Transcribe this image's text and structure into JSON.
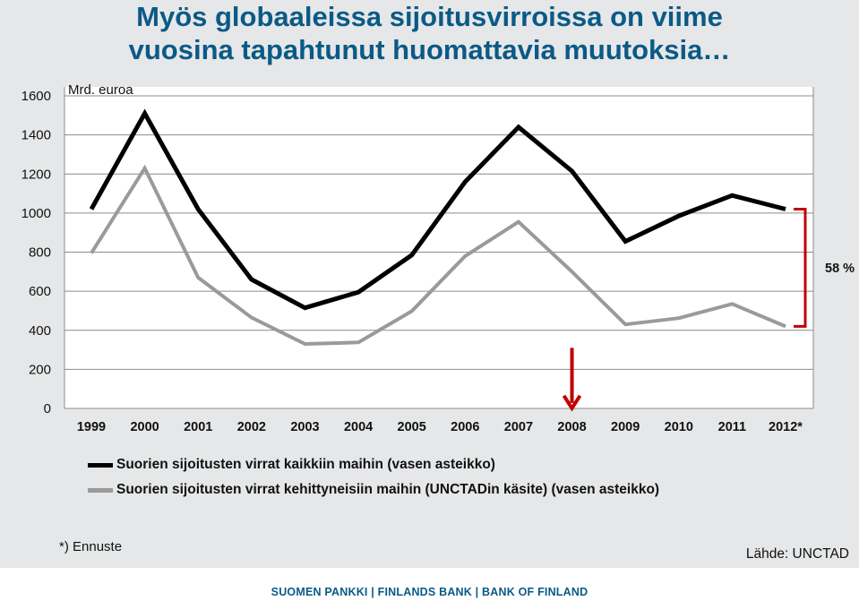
{
  "title": {
    "line1": "Myös globaaleissa sijoitusvirroissa on viime",
    "line2": "vuosina tapahtunut huomattavia muutoksia…"
  },
  "chart_data": {
    "type": "line",
    "unit_label": "Mrd. euroa",
    "categories": [
      "1999",
      "2000",
      "2001",
      "2002",
      "2003",
      "2004",
      "2005",
      "2006",
      "2007",
      "2008",
      "2009",
      "2010",
      "2011",
      "2012*"
    ],
    "ylim": [
      0,
      1600
    ],
    "yticks": [
      0,
      200,
      400,
      600,
      800,
      1000,
      1200,
      1400,
      1600
    ],
    "grid": true,
    "series": [
      {
        "name": "Suorien sijoitusten virrat kaikkiin maihin (vasen asteikko)",
        "color": "#000000",
        "values": [
          1020,
          1510,
          1020,
          660,
          515,
          595,
          785,
          1160,
          1440,
          1215,
          855,
          985,
          1090,
          1020
        ]
      },
      {
        "name": "Suorien sijoitusten virrat kehittyneisiin maihin (UNCTADin käsite) (vasen asteikko)",
        "color": "#9a9a9a",
        "values": [
          795,
          1230,
          670,
          465,
          330,
          338,
          498,
          780,
          955,
          700,
          430,
          462,
          535,
          420
        ]
      }
    ],
    "annotation_bracket": {
      "label": "58 %",
      "from": 420,
      "to": 1020,
      "color": "#c00000"
    },
    "annotation_arrow": {
      "category": "2008",
      "from": 310,
      "to": 10,
      "color": "#c00000"
    }
  },
  "footnote": "*) Ennuste",
  "source": "Lähde: UNCTAD",
  "footer": "SUOMEN PANKKI | FINLANDS BANK | BANK OF FINLAND"
}
